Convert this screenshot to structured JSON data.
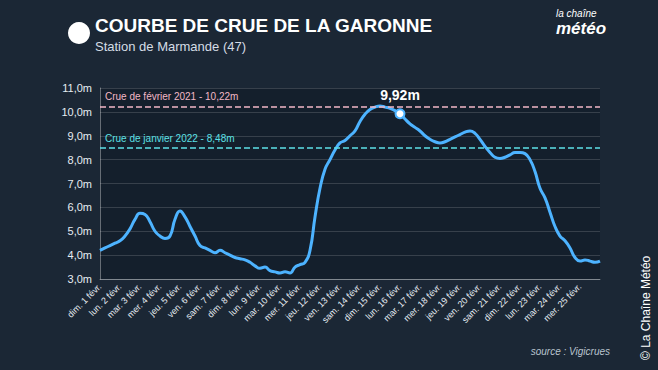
{
  "chart_data": {
    "type": "line",
    "title": "COURBE DE CRUE DE LA GARONNE",
    "subtitle": "Station de Marmande (47)",
    "source": "source : Vigicrues",
    "credit": "© La Chaîne Météo",
    "logo": [
      "la chaîne",
      "météo"
    ],
    "categories": [
      "dim. 1 févr.",
      null,
      null,
      null,
      "lun. 2 févr.",
      null,
      null,
      null,
      "mar. 3 févr.",
      null,
      null,
      null,
      "mer. 4 févr.",
      null,
      null,
      null,
      "jeu. 5 févr.",
      null,
      null,
      null,
      "ven. 6 févr.",
      null,
      null,
      null,
      "sam. 7 févr.",
      null,
      null,
      null,
      "dim. 8 févr.",
      null,
      null,
      null,
      "lun. 9 févr.",
      null,
      null,
      null,
      "mar. 10 févr.",
      null,
      null,
      null,
      "mer. 11 févr.",
      null,
      null,
      null,
      "jeu. 12 févr.",
      null,
      null,
      null,
      "ven. 13 févr.",
      null,
      null,
      null,
      "sam. 14 févr.",
      null,
      null,
      null,
      "dim. 15 févr.",
      null,
      null,
      null,
      "lun. 16 févr.",
      null,
      null,
      null,
      "mar. 17 févr.",
      null,
      null,
      null,
      "mer. 18 févr.",
      null,
      null,
      null,
      "jeu. 19 févr.",
      null,
      null,
      null,
      "ven. 20 févr.",
      null,
      null,
      null,
      "sam. 21 févr.",
      null,
      null,
      null,
      "dim. 22 févr.",
      null,
      null,
      null,
      "lun. 23 févr.",
      null,
      null,
      null,
      "mar. 24 févr.",
      null,
      null,
      null,
      "mer. 25 févr.",
      null,
      null,
      null,
      null
    ],
    "values": [
      4.2,
      4.3,
      4.4,
      4.5,
      4.6,
      4.8,
      5.1,
      5.5,
      5.75,
      5.7,
      5.4,
      5.0,
      4.8,
      4.7,
      4.8,
      5.5,
      5.85,
      5.6,
      5.2,
      4.8,
      4.4,
      4.3,
      4.2,
      4.1,
      4.2,
      4.1,
      4.0,
      3.9,
      3.85,
      3.8,
      3.7,
      3.55,
      3.45,
      3.5,
      3.35,
      3.3,
      3.25,
      3.3,
      3.25,
      3.5,
      3.6,
      3.7,
      4.2,
      5.6,
      6.8,
      7.6,
      8.0,
      8.4,
      8.7,
      8.8,
      9.0,
      9.2,
      9.6,
      9.9,
      10.1,
      10.2,
      10.25,
      10.2,
      10.15,
      10.05,
      9.92,
      9.7,
      9.5,
      9.35,
      9.2,
      9.0,
      8.85,
      8.75,
      8.7,
      8.75,
      8.85,
      8.95,
      9.05,
      9.15,
      9.2,
      9.1,
      8.85,
      8.55,
      8.3,
      8.1,
      8.05,
      8.1,
      8.2,
      8.3,
      8.3,
      8.25,
      8.0,
      7.5,
      6.8,
      6.4,
      5.8,
      5.2,
      4.8,
      4.6,
      4.3,
      3.9,
      3.75,
      3.8,
      3.75,
      3.7,
      3.75
    ],
    "color": "#4db3ff",
    "ylim": [
      3,
      11
    ],
    "yticks": [
      {
        "value": 3,
        "label": "3,0m"
      },
      {
        "value": 4,
        "label": "4,0m"
      },
      {
        "value": 5,
        "label": "5,0m"
      },
      {
        "value": 6,
        "label": "6,0m"
      },
      {
        "value": 7,
        "label": "7,0m"
      },
      {
        "value": 8,
        "label": "8,0m"
      },
      {
        "value": 9,
        "label": "9,0m"
      },
      {
        "value": 10,
        "label": "10,0m"
      },
      {
        "value": 11,
        "label": "11,0m"
      }
    ],
    "grid": true,
    "reference_lines": [
      {
        "value": 10.22,
        "label": "Crue de février 2021 - 10,22m",
        "color": "#f2b8c6"
      },
      {
        "value": 8.48,
        "label": "Crue de janvier 2022 - 8,48m",
        "color": "#5ce1e6"
      }
    ],
    "annotations": [
      {
        "index": 60,
        "value": 9.92,
        "label": "9,92m"
      }
    ]
  }
}
